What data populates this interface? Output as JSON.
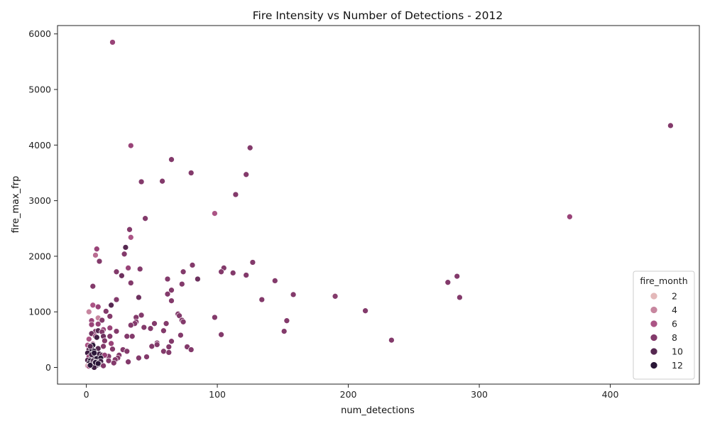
{
  "chart_data": {
    "type": "scatter",
    "title": "Fire Intensity vs Number of Detections - 2012",
    "xlabel": "num_detections",
    "ylabel": "fire_max_frp",
    "xlim": [
      -22,
      468
    ],
    "ylim": [
      -300,
      6150
    ],
    "xticks": [
      0,
      100,
      200,
      300,
      400
    ],
    "yticks": [
      0,
      1000,
      2000,
      3000,
      4000,
      5000,
      6000
    ],
    "grid": false,
    "legend": {
      "title": "fire_month",
      "placement": "lower-right",
      "entries": [
        {
          "label": "2",
          "month": 2
        },
        {
          "label": "4",
          "month": 4
        },
        {
          "label": "6",
          "month": 6
        },
        {
          "label": "8",
          "month": 8
        },
        {
          "label": "10",
          "month": 10
        },
        {
          "label": "12",
          "month": 12
        }
      ]
    },
    "hue": {
      "field": "fire_month",
      "min": 1,
      "max": 12,
      "color_low": "#f1d1c6",
      "color_mid": "#a4477e",
      "color_high": "#2a1637"
    },
    "points": [
      [
        20,
        5850,
        7
      ],
      [
        34,
        3990,
        7
      ],
      [
        125,
        3950,
        8
      ],
      [
        65,
        3740,
        8
      ],
      [
        80,
        3500,
        8
      ],
      [
        122,
        3470,
        8
      ],
      [
        42,
        3340,
        8
      ],
      [
        58,
        3350,
        8
      ],
      [
        114,
        3110,
        8
      ],
      [
        98,
        2770,
        6
      ],
      [
        45,
        2680,
        8
      ],
      [
        33,
        2480,
        8
      ],
      [
        34,
        2340,
        6
      ],
      [
        30,
        2160,
        10
      ],
      [
        8,
        2130,
        7
      ],
      [
        7,
        2020,
        5
      ],
      [
        29,
        2040,
        8
      ],
      [
        10,
        1910,
        8
      ],
      [
        127,
        1890,
        8
      ],
      [
        81,
        1840,
        8
      ],
      [
        105,
        1790,
        8
      ],
      [
        32,
        1790,
        7
      ],
      [
        41,
        1770,
        8
      ],
      [
        23,
        1720,
        8
      ],
      [
        74,
        1720,
        8
      ],
      [
        103,
        1720,
        8
      ],
      [
        112,
        1700,
        8
      ],
      [
        27,
        1650,
        9
      ],
      [
        122,
        1660,
        8
      ],
      [
        85,
        1590,
        9
      ],
      [
        62,
        1590,
        8
      ],
      [
        144,
        1560,
        8
      ],
      [
        34,
        1520,
        8
      ],
      [
        73,
        1500,
        8
      ],
      [
        5,
        1460,
        8
      ],
      [
        65,
        1390,
        8
      ],
      [
        62,
        1320,
        8
      ],
      [
        158,
        1310,
        8
      ],
      [
        40,
        1260,
        9
      ],
      [
        134,
        1220,
        8
      ],
      [
        23,
        1220,
        8
      ],
      [
        65,
        1200,
        8
      ],
      [
        5,
        1120,
        6
      ],
      [
        19,
        1120,
        10
      ],
      [
        9,
        1090,
        7
      ],
      [
        15,
        1010,
        8
      ],
      [
        2,
        1000,
        4
      ],
      [
        70,
        960,
        8
      ],
      [
        42,
        940,
        8
      ],
      [
        71,
        930,
        8
      ],
      [
        18,
        920,
        8
      ],
      [
        38,
        900,
        8
      ],
      [
        98,
        900,
        8
      ],
      [
        9,
        890,
        4
      ],
      [
        73,
        850,
        8
      ],
      [
        153,
        840,
        8
      ],
      [
        4,
        840,
        7
      ],
      [
        12,
        850,
        8
      ],
      [
        74,
        820,
        8
      ],
      [
        38,
        820,
        8
      ],
      [
        37,
        790,
        8
      ],
      [
        52,
        790,
        8
      ],
      [
        61,
        790,
        8
      ],
      [
        4,
        770,
        7
      ],
      [
        9,
        780,
        7
      ],
      [
        34,
        760,
        8
      ],
      [
        44,
        720,
        8
      ],
      [
        49,
        700,
        8
      ],
      [
        18,
        710,
        7
      ],
      [
        7,
        650,
        8
      ],
      [
        13,
        680,
        7
      ],
      [
        9,
        660,
        10
      ],
      [
        23,
        650,
        8
      ],
      [
        12,
        640,
        8
      ],
      [
        4,
        610,
        9
      ],
      [
        59,
        660,
        8
      ],
      [
        72,
        580,
        8
      ],
      [
        103,
        590,
        8
      ],
      [
        151,
        650,
        8
      ],
      [
        7,
        560,
        7
      ],
      [
        13,
        560,
        9
      ],
      [
        18,
        560,
        8
      ],
      [
        31,
        560,
        8
      ],
      [
        35,
        560,
        8
      ],
      [
        2,
        510,
        6
      ],
      [
        8,
        540,
        11
      ],
      [
        14,
        480,
        8
      ],
      [
        19,
        430,
        7
      ],
      [
        65,
        470,
        8
      ],
      [
        233,
        490,
        8
      ],
      [
        54,
        440,
        8
      ],
      [
        5,
        420,
        6
      ],
      [
        13,
        380,
        8
      ],
      [
        1,
        400,
        6
      ],
      [
        5,
        400,
        12
      ],
      [
        50,
        380,
        8
      ],
      [
        54,
        410,
        8
      ],
      [
        63,
        370,
        8
      ],
      [
        77,
        370,
        8
      ],
      [
        20,
        330,
        8
      ],
      [
        80,
        320,
        8
      ],
      [
        9,
        340,
        10
      ],
      [
        2,
        320,
        10
      ],
      [
        4,
        330,
        12
      ],
      [
        6,
        290,
        12
      ],
      [
        28,
        320,
        8
      ],
      [
        31,
        290,
        8
      ],
      [
        59,
        290,
        8
      ],
      [
        63,
        270,
        8
      ],
      [
        1,
        260,
        11
      ],
      [
        7,
        250,
        10
      ],
      [
        10,
        240,
        11
      ],
      [
        12,
        220,
        10
      ],
      [
        15,
        210,
        8
      ],
      [
        17,
        200,
        8
      ],
      [
        25,
        220,
        8
      ],
      [
        14,
        220,
        7
      ],
      [
        46,
        190,
        8
      ],
      [
        40,
        170,
        8
      ],
      [
        24,
        170,
        8
      ],
      [
        2,
        190,
        7
      ],
      [
        4,
        170,
        11
      ],
      [
        6,
        180,
        11
      ],
      [
        8,
        160,
        12
      ],
      [
        11,
        170,
        12
      ],
      [
        1,
        130,
        10
      ],
      [
        3,
        120,
        12
      ],
      [
        5,
        110,
        11
      ],
      [
        7,
        100,
        9
      ],
      [
        9,
        90,
        10
      ],
      [
        11,
        110,
        11
      ],
      [
        17,
        120,
        8
      ],
      [
        22,
        140,
        8
      ],
      [
        21,
        80,
        8
      ],
      [
        32,
        100,
        8
      ],
      [
        2,
        70,
        12
      ],
      [
        4,
        60,
        11
      ],
      [
        6,
        50,
        10
      ],
      [
        8,
        40,
        12
      ],
      [
        10,
        60,
        11
      ],
      [
        13,
        30,
        8
      ],
      [
        1,
        30,
        3
      ],
      [
        2,
        20,
        6
      ],
      [
        6,
        0,
        11
      ],
      [
        3,
        40,
        12
      ],
      [
        7,
        90,
        12
      ],
      [
        9,
        70,
        12
      ],
      [
        4,
        230,
        11
      ],
      [
        6,
        260,
        12
      ],
      [
        3,
        380,
        10
      ],
      [
        276,
        1530,
        8
      ],
      [
        283,
        1640,
        8
      ],
      [
        285,
        1260,
        8
      ],
      [
        190,
        1280,
        8
      ],
      [
        213,
        1020,
        8
      ],
      [
        369,
        2710,
        7
      ],
      [
        446,
        4350,
        8
      ]
    ]
  }
}
